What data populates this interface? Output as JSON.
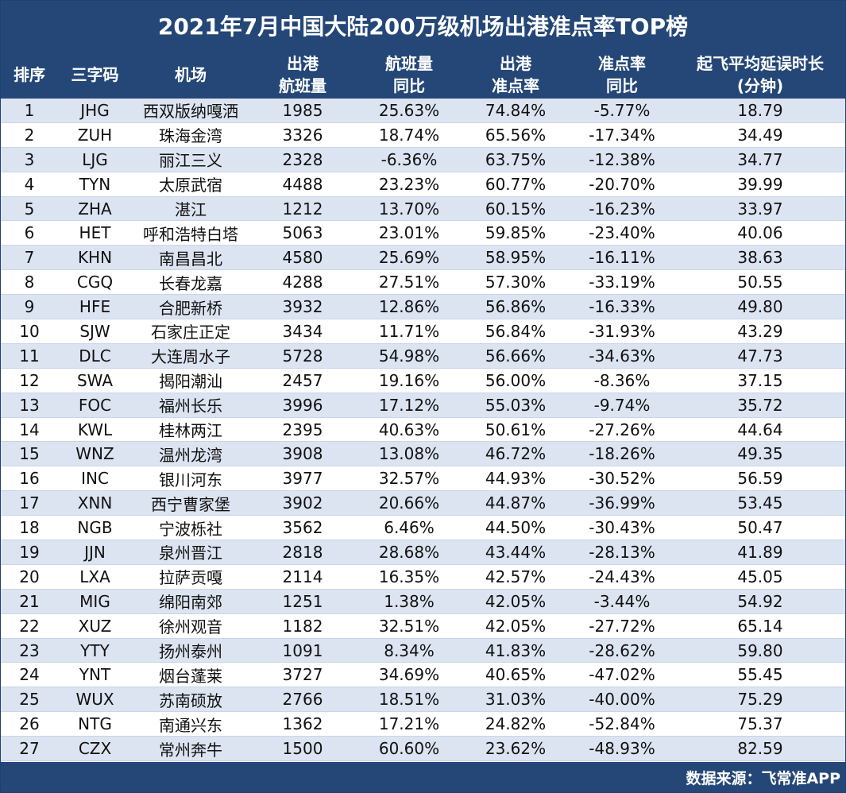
{
  "title": "2021年7月中国大陆200万级机场出港准点率TOP榜",
  "columns": [
    [
      "排序"
    ],
    [
      "三字码"
    ],
    [
      "机场"
    ],
    [
      "出港",
      "航班量"
    ],
    [
      "航班量",
      "同比"
    ],
    [
      "出港",
      "准点率"
    ],
    [
      "准点率",
      "同比"
    ],
    [
      "起飞平均延误时长",
      "(分钟)"
    ]
  ],
  "rows": [
    [
      "1",
      "JHG",
      "西双版纳嘎洒",
      "1985",
      "25.63%",
      "74.84%",
      "-5.77%",
      "18.79"
    ],
    [
      "2",
      "ZUH",
      "珠海金湾",
      "3326",
      "18.74%",
      "65.56%",
      "-17.34%",
      "34.49"
    ],
    [
      "3",
      "LJG",
      "丽江三义",
      "2328",
      "-6.36%",
      "63.75%",
      "-12.38%",
      "34.77"
    ],
    [
      "4",
      "TYN",
      "太原武宿",
      "4488",
      "23.23%",
      "60.77%",
      "-20.70%",
      "39.99"
    ],
    [
      "5",
      "ZHA",
      "湛江",
      "1212",
      "13.70%",
      "60.15%",
      "-16.23%",
      "33.97"
    ],
    [
      "6",
      "HET",
      "呼和浩特白塔",
      "5063",
      "23.01%",
      "59.85%",
      "-23.40%",
      "40.06"
    ],
    [
      "7",
      "KHN",
      "南昌昌北",
      "4580",
      "25.69%",
      "58.95%",
      "-16.11%",
      "38.63"
    ],
    [
      "8",
      "CGQ",
      "长春龙嘉",
      "4288",
      "27.51%",
      "57.30%",
      "-33.19%",
      "50.55"
    ],
    [
      "9",
      "HFE",
      "合肥新桥",
      "3932",
      "12.86%",
      "56.86%",
      "-16.33%",
      "49.80"
    ],
    [
      "10",
      "SJW",
      "石家庄正定",
      "3434",
      "11.71%",
      "56.84%",
      "-31.93%",
      "43.29"
    ],
    [
      "11",
      "DLC",
      "大连周水子",
      "5728",
      "54.98%",
      "56.66%",
      "-34.63%",
      "47.73"
    ],
    [
      "12",
      "SWA",
      "揭阳潮汕",
      "2457",
      "19.16%",
      "56.00%",
      "-8.36%",
      "37.15"
    ],
    [
      "13",
      "FOC",
      "福州长乐",
      "3996",
      "17.12%",
      "55.03%",
      "-9.74%",
      "35.72"
    ],
    [
      "14",
      "KWL",
      "桂林两江",
      "2395",
      "40.63%",
      "50.61%",
      "-27.26%",
      "44.64"
    ],
    [
      "15",
      "WNZ",
      "温州龙湾",
      "3908",
      "13.08%",
      "46.72%",
      "-18.26%",
      "49.35"
    ],
    [
      "16",
      "INC",
      "银川河东",
      "3977",
      "32.57%",
      "44.93%",
      "-30.52%",
      "56.59"
    ],
    [
      "17",
      "XNN",
      "西宁曹家堡",
      "3902",
      "20.66%",
      "44.87%",
      "-36.99%",
      "53.45"
    ],
    [
      "18",
      "NGB",
      "宁波栎社",
      "3562",
      "6.46%",
      "44.50%",
      "-30.43%",
      "50.47"
    ],
    [
      "19",
      "JJN",
      "泉州晋江",
      "2818",
      "28.68%",
      "43.44%",
      "-28.13%",
      "41.89"
    ],
    [
      "20",
      "LXA",
      "拉萨贡嘎",
      "2114",
      "16.35%",
      "42.57%",
      "-24.43%",
      "45.05"
    ],
    [
      "21",
      "MIG",
      "绵阳南郊",
      "1251",
      "1.38%",
      "42.05%",
      "-3.44%",
      "54.92"
    ],
    [
      "22",
      "XUZ",
      "徐州观音",
      "1182",
      "32.51%",
      "42.05%",
      "-27.72%",
      "65.14"
    ],
    [
      "23",
      "YTY",
      "扬州泰州",
      "1091",
      "8.34%",
      "41.83%",
      "-28.62%",
      "59.80"
    ],
    [
      "24",
      "YNT",
      "烟台蓬莱",
      "3727",
      "34.69%",
      "40.65%",
      "-47.02%",
      "55.45"
    ],
    [
      "25",
      "WUX",
      "苏南硕放",
      "2766",
      "18.51%",
      "31.03%",
      "-40.00%",
      "75.29"
    ],
    [
      "26",
      "NTG",
      "南通兴东",
      "1362",
      "17.21%",
      "24.82%",
      "-52.84%",
      "75.37"
    ],
    [
      "27",
      "CZX",
      "常州奔牛",
      "1500",
      "60.60%",
      "23.62%",
      "-48.93%",
      "82.59"
    ]
  ],
  "footer": "数据来源：飞常准APP",
  "colors": {
    "header_bg": "#244777",
    "row_stripe": "#dce4f1"
  }
}
